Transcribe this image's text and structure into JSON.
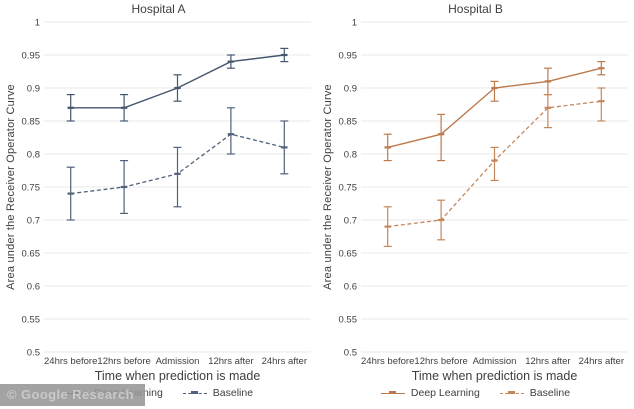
{
  "watermark": {
    "text": "© Google Research"
  },
  "chart_data": [
    {
      "type": "line",
      "title": "Hospital A",
      "xlabel": "Time when prediction is made",
      "ylabel": "Area under the Receiver Operator Curve",
      "categories": [
        "24hrs before",
        "12hrs before",
        "Admission",
        "12hrs after",
        "24hrs after"
      ],
      "ylim": [
        0.5,
        1
      ],
      "ytick_step": 0.05,
      "grid": true,
      "grid_color": "#e9e9e9",
      "text_color": "#404040",
      "legend_position": "bottom",
      "series": [
        {
          "name": "Deep Learning",
          "line_style": "solid",
          "color": "#44566e",
          "values": [
            0.87,
            0.87,
            0.9,
            0.94,
            0.95
          ],
          "err_low": [
            0.85,
            0.85,
            0.88,
            0.93,
            0.94
          ],
          "err_high": [
            0.89,
            0.89,
            0.92,
            0.95,
            0.96
          ]
        },
        {
          "name": "Baseline",
          "line_style": "dashed",
          "color": "#50627a",
          "values": [
            0.74,
            0.75,
            0.77,
            0.83,
            0.81
          ],
          "err_low": [
            0.7,
            0.71,
            0.72,
            0.8,
            0.77
          ],
          "err_high": [
            0.78,
            0.79,
            0.81,
            0.87,
            0.85
          ]
        }
      ]
    },
    {
      "type": "line",
      "title": "Hospital B",
      "xlabel": "Time when prediction is made",
      "ylabel": "Area under the Receiver Operator Curve",
      "categories": [
        "24hrs before",
        "12hrs before",
        "Admission",
        "12hrs after",
        "24hrs after"
      ],
      "ylim": [
        0.5,
        1
      ],
      "ytick_step": 0.05,
      "grid": true,
      "grid_color": "#e9e9e9",
      "text_color": "#404040",
      "legend_position": "bottom",
      "series": [
        {
          "name": "Deep Learning",
          "line_style": "solid",
          "color": "#bd7a4c",
          "values": [
            0.81,
            0.83,
            0.9,
            0.91,
            0.93
          ],
          "err_low": [
            0.79,
            0.79,
            0.88,
            0.89,
            0.92
          ],
          "err_high": [
            0.83,
            0.86,
            0.91,
            0.93,
            0.94
          ]
        },
        {
          "name": "Baseline",
          "line_style": "dashed",
          "color": "#c4875c",
          "values": [
            0.69,
            0.7,
            0.79,
            0.87,
            0.88
          ],
          "err_low": [
            0.66,
            0.67,
            0.76,
            0.84,
            0.85
          ],
          "err_high": [
            0.72,
            0.73,
            0.81,
            0.89,
            0.9
          ]
        }
      ]
    }
  ]
}
